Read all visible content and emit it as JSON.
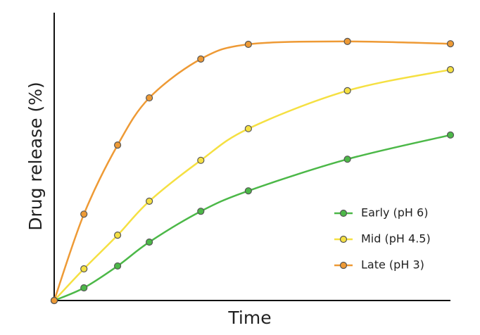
{
  "chart_data": {
    "type": "line",
    "x_label": "Time",
    "y_label": "Drug release (%)",
    "x": [
      0,
      7.5,
      16,
      24,
      37,
      49,
      74,
      100
    ],
    "xlim": [
      0,
      100
    ],
    "ylim": [
      0,
      100
    ],
    "legend": "lower right",
    "series": [
      {
        "name": "Early (pH 6)",
        "color": "#4cb848",
        "values": [
          0,
          4.4,
          12,
          20.3,
          31,
          38.1,
          49.1,
          57.5
        ]
      },
      {
        "name": "Mid (pH 4.5)",
        "color": "#f5e042",
        "values": [
          0,
          11,
          22.7,
          34.5,
          48.7,
          59.7,
          72.9,
          80.2
        ]
      },
      {
        "name": "Late (pH 3)",
        "color": "#ee9a35",
        "values": [
          0,
          30,
          54,
          70.4,
          83.9,
          89,
          90,
          89.2
        ]
      }
    ]
  }
}
